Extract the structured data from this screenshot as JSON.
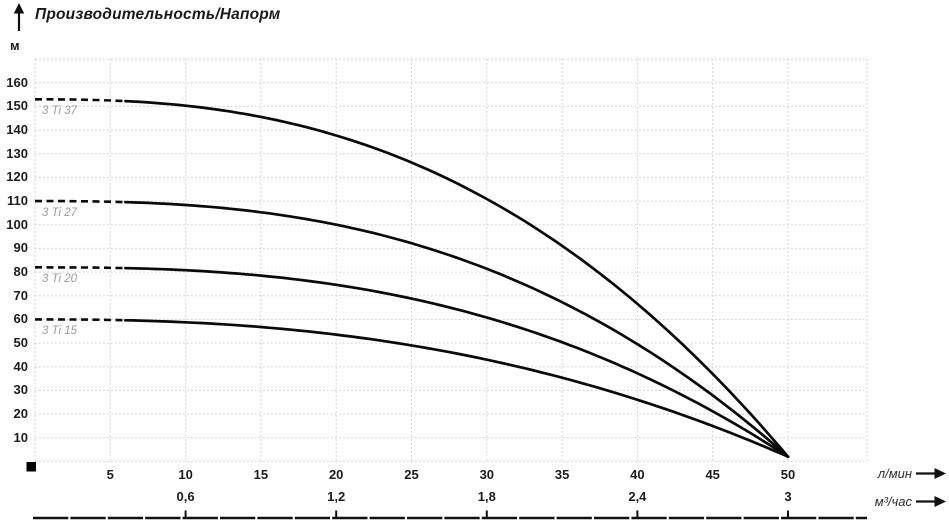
{
  "header": {
    "title": "Производительность/Напорм"
  },
  "axes": {
    "y_unit": "м",
    "x1_unit": "л/мин",
    "x2_unit": "м³/час"
  },
  "chart_data": {
    "type": "line",
    "title": "Производительность/Напорм",
    "ylabel": "м",
    "xlabel_primary": "л/мин",
    "xlabel_secondary": "м³/час",
    "xlim": [
      0,
      55
    ],
    "ylim": [
      0,
      170
    ],
    "grid": true,
    "legend_position": "inline-curve-labels",
    "x": [
      0,
      5,
      10,
      15,
      20,
      25,
      30,
      35,
      40,
      45,
      50
    ],
    "series": [
      {
        "name": "3 Ti 37",
        "values": [
          153,
          152.5,
          150.3,
          145.6,
          137.7,
          126.3,
          110.9,
          91.1,
          66.6,
          37.0,
          2
        ],
        "model": {
          "h0": 153,
          "p": 2.5,
          "converge": 2,
          "x_end": 50
        },
        "dashed_until_x": 6
      },
      {
        "name": "3 Ti 27",
        "values": [
          110,
          109.7,
          108.4,
          105.3,
          100.0,
          92.2,
          81.4,
          67.3,
          49.5,
          27.9,
          2
        ],
        "model": {
          "h0": 110,
          "p": 2.6,
          "converge": 2,
          "x_end": 50
        },
        "dashed_until_x": 6
      },
      {
        "name": "3 Ti 20",
        "values": [
          82,
          81.8,
          80.8,
          78.5,
          74.6,
          68.8,
          60.8,
          50.4,
          37.2,
          21.2,
          2
        ],
        "model": {
          "h0": 82,
          "p": 2.6,
          "converge": 2,
          "x_end": 50
        },
        "dashed_until_x": 6
      },
      {
        "name": "3 Ti 15",
        "values": [
          60,
          59.8,
          58.8,
          56.8,
          53.6,
          49.0,
          43.0,
          35.4,
          26.0,
          15.0,
          2
        ],
        "model": {
          "h0": 60,
          "p": 2.4,
          "converge": 2,
          "x_end": 50
        },
        "dashed_until_x": 6
      }
    ],
    "y_ticks": [
      10,
      20,
      30,
      40,
      50,
      60,
      70,
      80,
      90,
      100,
      110,
      120,
      130,
      140,
      150,
      160
    ],
    "x_ticks_primary": [
      5,
      10,
      15,
      20,
      25,
      30,
      35,
      40,
      45,
      50
    ],
    "x_ticks_secondary": [
      {
        "label": "0,6",
        "value": 0.6,
        "at_lmin": 10
      },
      {
        "label": "1,2",
        "value": 1.2,
        "at_lmin": 20
      },
      {
        "label": "1,8",
        "value": 1.8,
        "at_lmin": 30
      },
      {
        "label": "2,4",
        "value": 2.4,
        "at_lmin": 40
      },
      {
        "label": "3",
        "value": 3.0,
        "at_lmin": 50
      }
    ],
    "colors": {
      "curve": "#0a0a0a",
      "grid": "#cccccc",
      "curve_label": "#9b9b9b",
      "text": "#1c1c1c"
    }
  }
}
